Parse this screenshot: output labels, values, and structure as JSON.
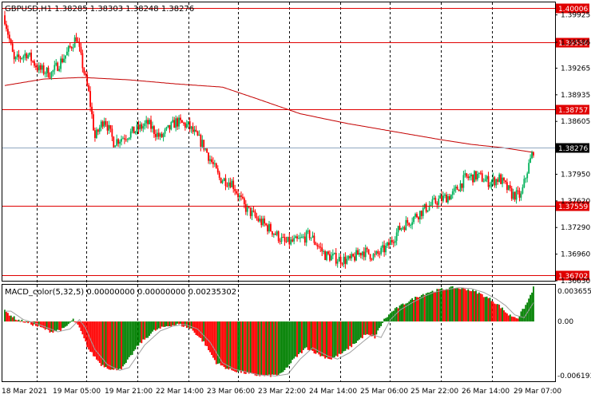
{
  "header": {
    "symbol_info": "GBPUSD,H1  1.38285 1.38303 1.38248 1.38276"
  },
  "indicator": {
    "title": "MACD_color(5,32,5) 0.00000000 0.00000000 0.00235302",
    "scale_top": "0.0036555",
    "scale_zero": "0.00",
    "scale_bottom": "-0.006193"
  },
  "price_axis": {
    "ticks": [
      "1.39925",
      "1.39586",
      "1.39265",
      "1.38935",
      "1.38605",
      "1.37950",
      "1.37620",
      "1.37290",
      "1.36960",
      "1.36630"
    ]
  },
  "levels": [
    {
      "label": "1.40006",
      "price": 1.40006
    },
    {
      "label": "1.39586",
      "price": 1.39586
    },
    {
      "label": "1.38757",
      "price": 1.38757
    },
    {
      "label": "1.37559",
      "price": 1.37559
    },
    {
      "label": "1.36702",
      "price": 1.36702
    }
  ],
  "current_price": {
    "label": "1.38276",
    "price": 1.38276
  },
  "time_axis": {
    "labels": [
      "18 Mar 2021",
      "19 Mar 05:00",
      "19 Mar 21:00",
      "22 Mar 14:00",
      "23 Mar 06:00",
      "23 Mar 22:00",
      "24 Mar 14:00",
      "25 Mar 06:00",
      "25 Mar 22:00",
      "26 Mar 14:00",
      "29 Mar 07:00"
    ]
  },
  "colors": {
    "bull": "#00b25a",
    "bear": "#ff0000",
    "level_line": "#e00000",
    "moving_average": "#c40000",
    "grid": "#000000",
    "macd_up": "#008000",
    "macd_down": "#ff0000",
    "signal": "#a0a0a0"
  },
  "chart_data": {
    "type": "candlestick",
    "symbol": "GBPUSD",
    "timeframe": "H1",
    "price_range": [
      1.3663,
      1.4008
    ],
    "close_path_anchors": [
      [
        0,
        1.3988
      ],
      [
        6,
        1.3935
      ],
      [
        14,
        1.3945
      ],
      [
        22,
        1.3925
      ],
      [
        30,
        1.392
      ],
      [
        40,
        1.3945
      ],
      [
        46,
        1.3965
      ],
      [
        54,
        1.3895
      ],
      [
        58,
        1.384
      ],
      [
        64,
        1.3865
      ],
      [
        70,
        1.3835
      ],
      [
        80,
        1.3845
      ],
      [
        92,
        1.3858
      ],
      [
        100,
        1.384
      ],
      [
        110,
        1.386
      ],
      [
        118,
        1.3855
      ],
      [
        128,
        1.383
      ],
      [
        138,
        1.379
      ],
      [
        146,
        1.3785
      ],
      [
        154,
        1.3755
      ],
      [
        162,
        1.374
      ],
      [
        172,
        1.3725
      ],
      [
        180,
        1.371
      ],
      [
        188,
        1.3712
      ],
      [
        196,
        1.372
      ],
      [
        206,
        1.3695
      ],
      [
        214,
        1.369
      ],
      [
        222,
        1.3688
      ],
      [
        230,
        1.37
      ],
      [
        238,
        1.3693
      ],
      [
        246,
        1.3705
      ],
      [
        254,
        1.3728
      ],
      [
        262,
        1.374
      ],
      [
        270,
        1.3752
      ],
      [
        278,
        1.3762
      ],
      [
        288,
        1.377
      ],
      [
        296,
        1.379
      ],
      [
        304,
        1.3793
      ],
      [
        312,
        1.3785
      ],
      [
        318,
        1.379
      ],
      [
        326,
        1.377
      ],
      [
        332,
        1.3768
      ],
      [
        336,
        1.38
      ],
      [
        340,
        1.3825
      ]
    ],
    "moving_average_anchors": [
      [
        0,
        1.3905
      ],
      [
        25,
        1.3913
      ],
      [
        50,
        1.3915
      ],
      [
        80,
        1.3912
      ],
      [
        110,
        1.3907
      ],
      [
        140,
        1.3903
      ],
      [
        160,
        1.389
      ],
      [
        190,
        1.387
      ],
      [
        220,
        1.3858
      ],
      [
        250,
        1.3848
      ],
      [
        280,
        1.3838
      ],
      [
        300,
        1.3832
      ],
      [
        320,
        1.3828
      ],
      [
        340,
        1.3822
      ]
    ],
    "macd_anchors": [
      [
        0,
        0.0011
      ],
      [
        8,
        0.0002
      ],
      [
        16,
        -0.0002
      ],
      [
        24,
        -0.0007
      ],
      [
        30,
        -0.0011
      ],
      [
        38,
        -0.0008
      ],
      [
        44,
        0.0002
      ],
      [
        48,
        -0.0007
      ],
      [
        54,
        -0.003
      ],
      [
        62,
        -0.0046
      ],
      [
        70,
        -0.0052
      ],
      [
        76,
        -0.0049
      ],
      [
        86,
        -0.0025
      ],
      [
        96,
        -0.001
      ],
      [
        104,
        -0.0005
      ],
      [
        112,
        -0.0003
      ],
      [
        120,
        -0.0008
      ],
      [
        128,
        -0.0022
      ],
      [
        136,
        -0.0044
      ],
      [
        144,
        -0.0051
      ],
      [
        152,
        -0.0054
      ],
      [
        160,
        -0.0057
      ],
      [
        170,
        -0.0058
      ],
      [
        178,
        -0.0056
      ],
      [
        186,
        -0.004
      ],
      [
        194,
        -0.0028
      ],
      [
        204,
        -0.0037
      ],
      [
        210,
        -0.004
      ],
      [
        218,
        -0.0033
      ],
      [
        226,
        -0.0022
      ],
      [
        232,
        -0.0014
      ],
      [
        238,
        -0.0017
      ],
      [
        244,
        0.0002
      ],
      [
        250,
        0.0012
      ],
      [
        258,
        0.002
      ],
      [
        266,
        0.0027
      ],
      [
        272,
        0.0031
      ],
      [
        280,
        0.0034
      ],
      [
        288,
        0.0036
      ],
      [
        296,
        0.0035
      ],
      [
        304,
        0.0031
      ],
      [
        312,
        0.0024
      ],
      [
        318,
        0.0017
      ],
      [
        324,
        0.0007
      ],
      [
        330,
        0.0004
      ],
      [
        336,
        0.002
      ],
      [
        340,
        0.0036
      ]
    ],
    "macd_range": [
      -0.006193,
      0.0036555
    ],
    "candle_count": 341
  }
}
